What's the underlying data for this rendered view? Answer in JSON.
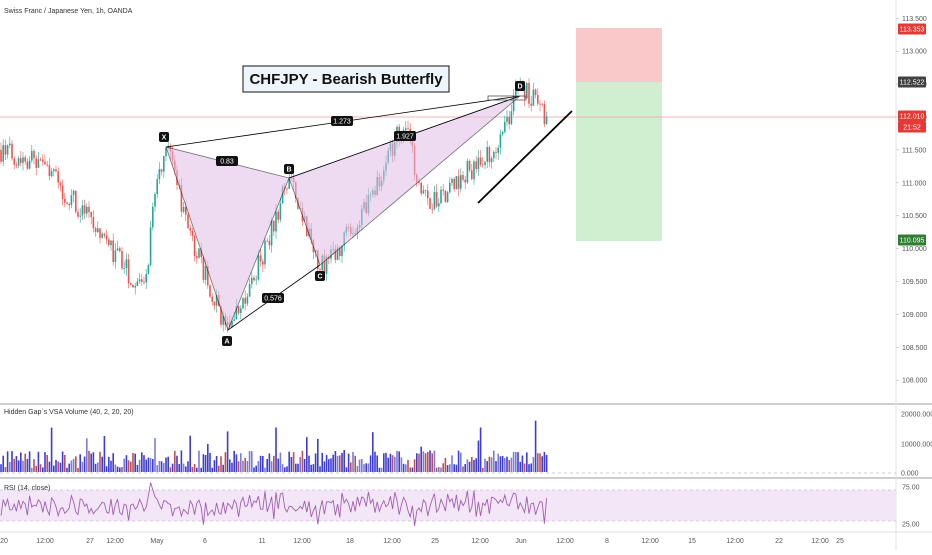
{
  "symbol_title": "Swiss Franc / Japanese Yen, 1h, OANDA",
  "annotation_title": "CHFJPY - Bearish Butterfly",
  "colors": {
    "up": "#26a69a",
    "down": "#ef5350",
    "pattern_fill": "#e1bee7",
    "stop_zone": "#f8bfbf",
    "target_zone": "#c8ecc8",
    "rsi": "#a060b0",
    "rsi_band": "#f3e6f7"
  },
  "price_axis_ticks": [
    "113.500",
    "113.000",
    "112.500",
    "112.000",
    "111.500",
    "111.000",
    "110.500",
    "110.000",
    "109.500",
    "109.000",
    "108.500",
    "108.000"
  ],
  "price_tags": [
    {
      "name": "stop-price-tag",
      "value": "113.353",
      "color": "#e53935"
    },
    {
      "name": "entry-price-tag",
      "value": "112.522",
      "color": "#424242"
    },
    {
      "name": "current-price-tag",
      "value": "112.010",
      "color": "#e53935"
    },
    {
      "name": "countdown-tag",
      "value": "21:52",
      "color": "#e53935"
    },
    {
      "name": "target-price-tag",
      "value": "110.095",
      "color": "#2e7d32"
    }
  ],
  "time_axis_ticks": [
    "20",
    "12:00",
    "27",
    "12:00",
    "May",
    "6",
    "11",
    "12:00",
    "18",
    "12:00",
    "25",
    "12:00",
    "Jun",
    "12:00",
    "8",
    "12:00",
    "15",
    "12:00",
    "22",
    "12:00",
    "25"
  ],
  "volume_pane": {
    "label": "Hidden Gap`s VSA Volume (40, 2, 20, 20)",
    "ticks": [
      "20000.000",
      "10000.000",
      "0.000"
    ]
  },
  "rsi_pane": {
    "label": "RSI (14, close)",
    "ticks": [
      "75.00",
      "25.00"
    ]
  },
  "chart_data": {
    "type": "line",
    "pattern": "Bearish Butterfly",
    "series": [
      {
        "name": "",
        "points": [
          {
            "x": "X",
            "y": 111.55
          },
          {
            "x": "A",
            "y": 108.7
          },
          {
            "x": "B",
            "y": 111.05
          },
          {
            "x": "C",
            "y": 109.7
          },
          {
            "x": "D",
            "y": 112.53
          }
        ]
      }
    ],
    "ratios": [
      "0.83",
      "0.576",
      "1.927",
      "1.273"
    ],
    "trade_levels": {
      "stop": 113.353,
      "entry": 112.522,
      "current": 112.01,
      "target": 110.095
    },
    "ylim": [
      107.6,
      113.65
    ]
  }
}
